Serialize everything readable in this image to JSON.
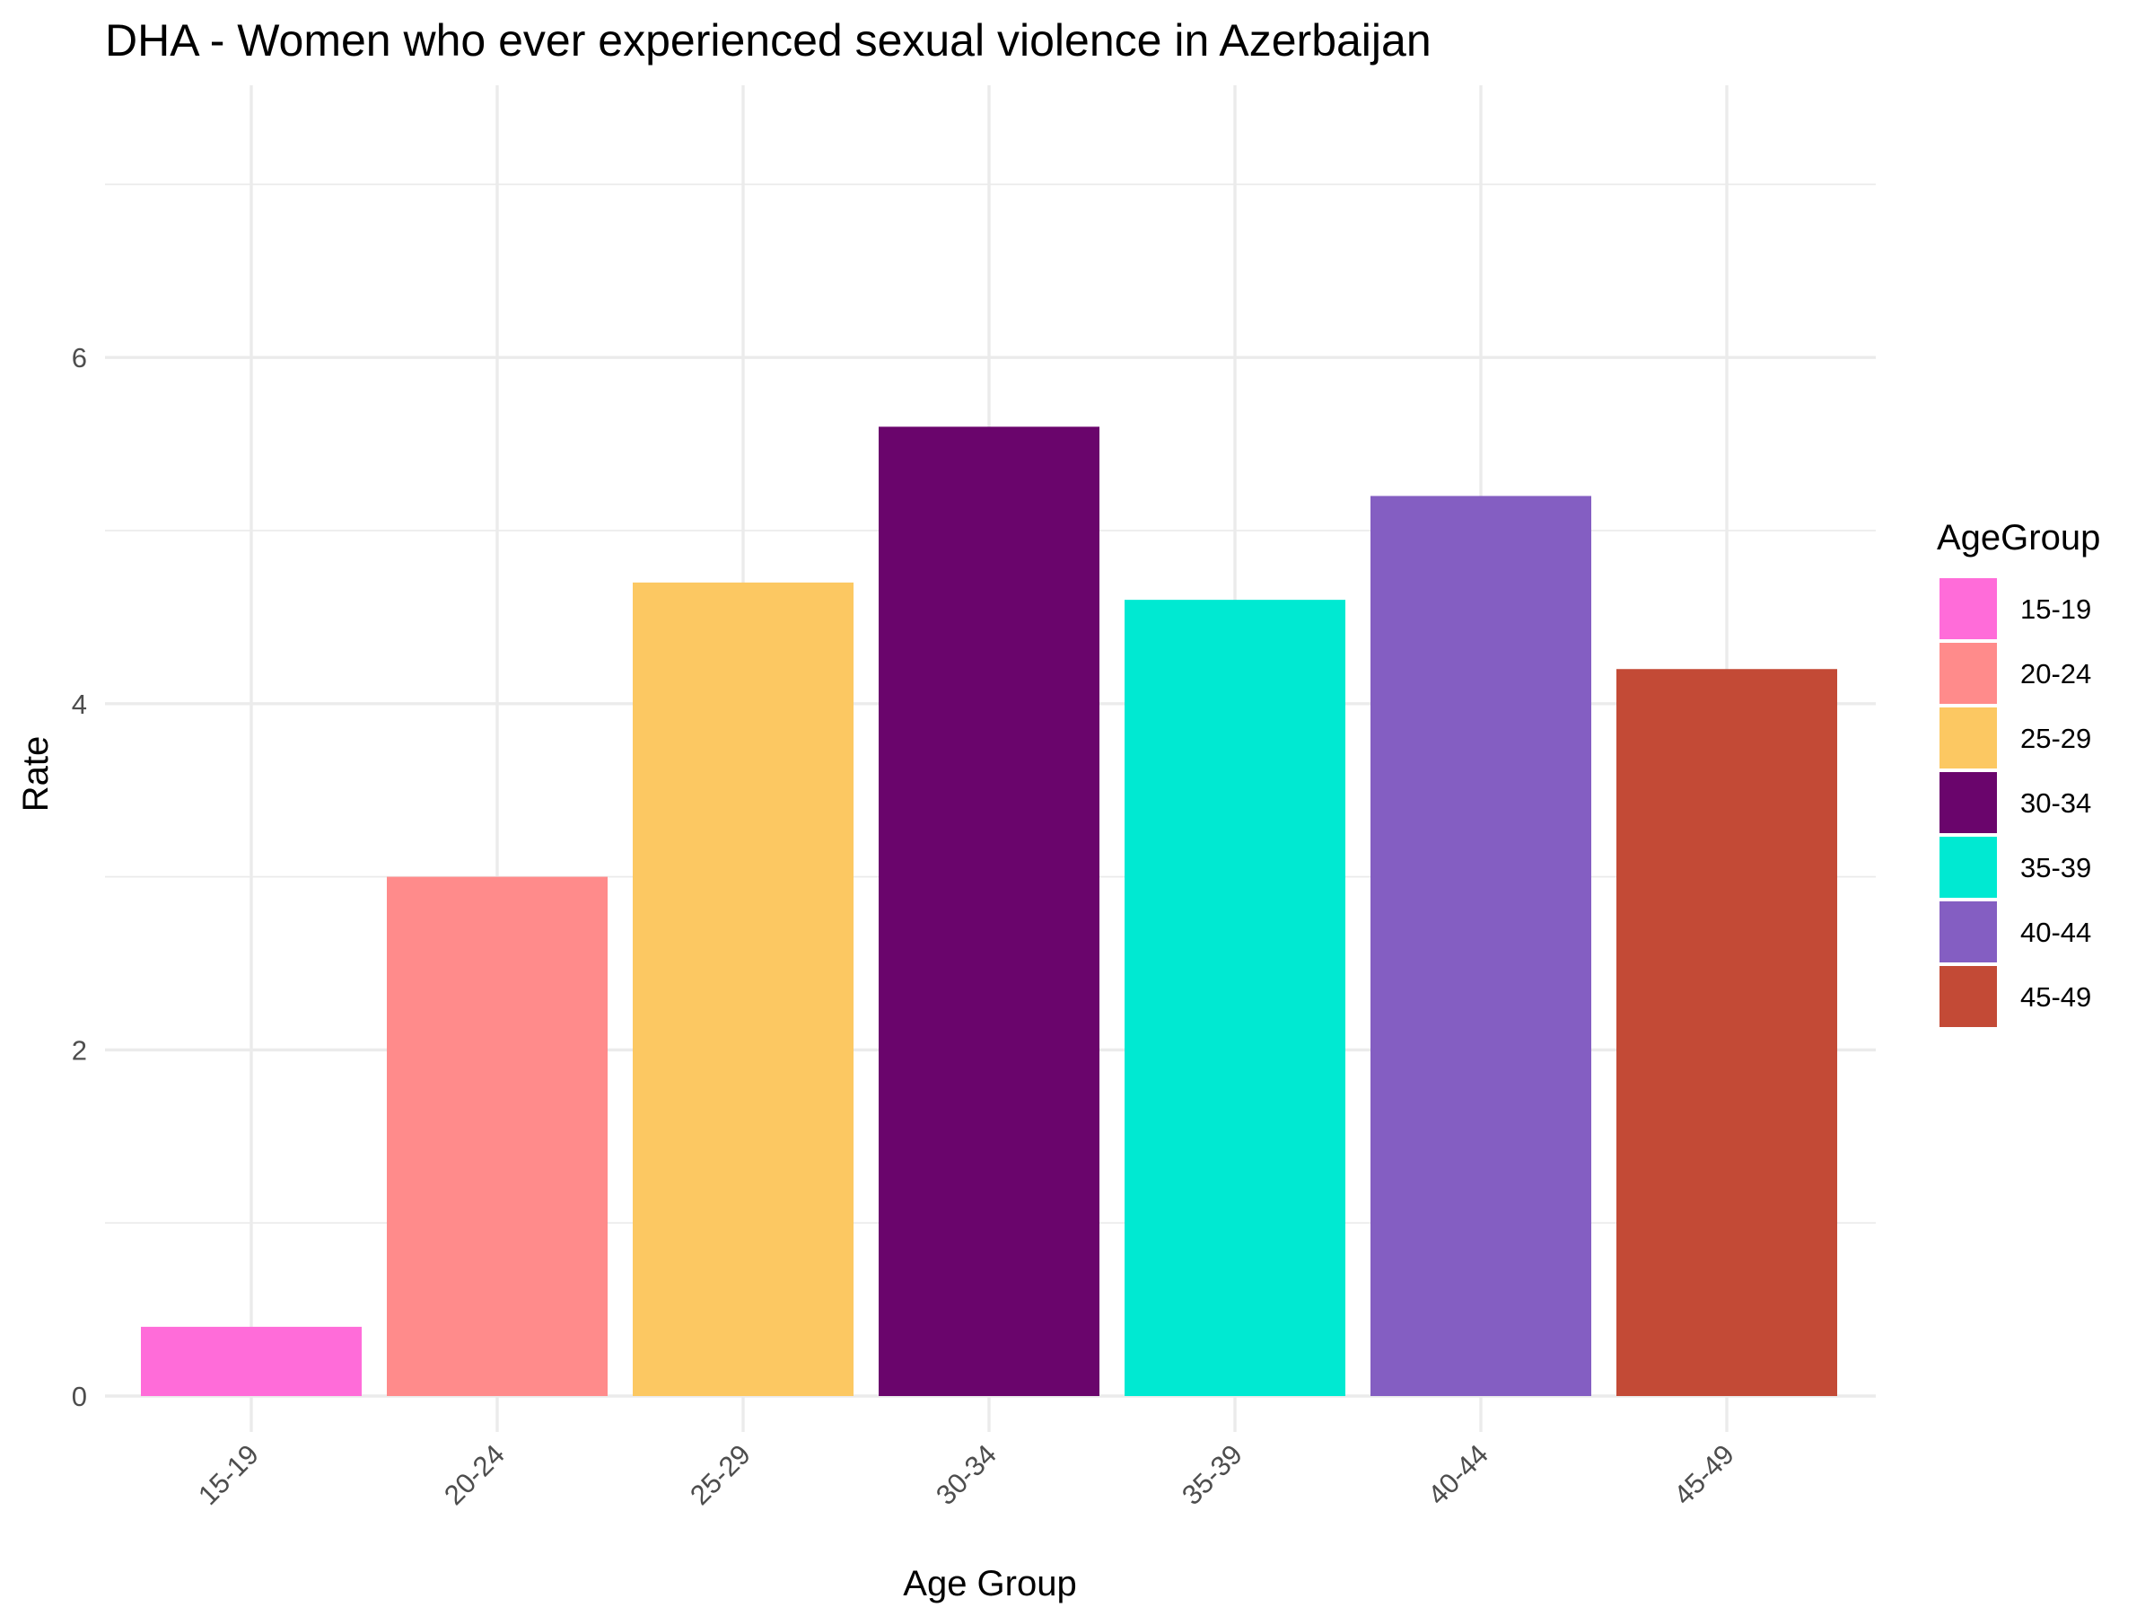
{
  "chart_data": {
    "type": "bar",
    "title": "DHA - Women who ever experienced sexual violence in Azerbaijan",
    "xlabel": "Age Group",
    "ylabel": "Rate",
    "categories": [
      "15-19",
      "20-24",
      "25-29",
      "30-34",
      "35-39",
      "40-44",
      "45-49"
    ],
    "values": [
      0.4,
      3.0,
      4.7,
      5.6,
      4.6,
      5.2,
      4.2
    ],
    "colors": [
      "#FF6CD9",
      "#FF8B8B",
      "#FCC862",
      "#6A056C",
      "#00E9D2",
      "#845EC2",
      "#C34A36"
    ],
    "ylim": [
      0,
      7.3
    ],
    "yticks": [
      0,
      2,
      4,
      6
    ],
    "grid": true,
    "legend": {
      "title": "AgeGroup",
      "position": "right",
      "items": [
        "15-19",
        "20-24",
        "25-29",
        "30-34",
        "35-39",
        "40-44",
        "45-49"
      ]
    }
  }
}
